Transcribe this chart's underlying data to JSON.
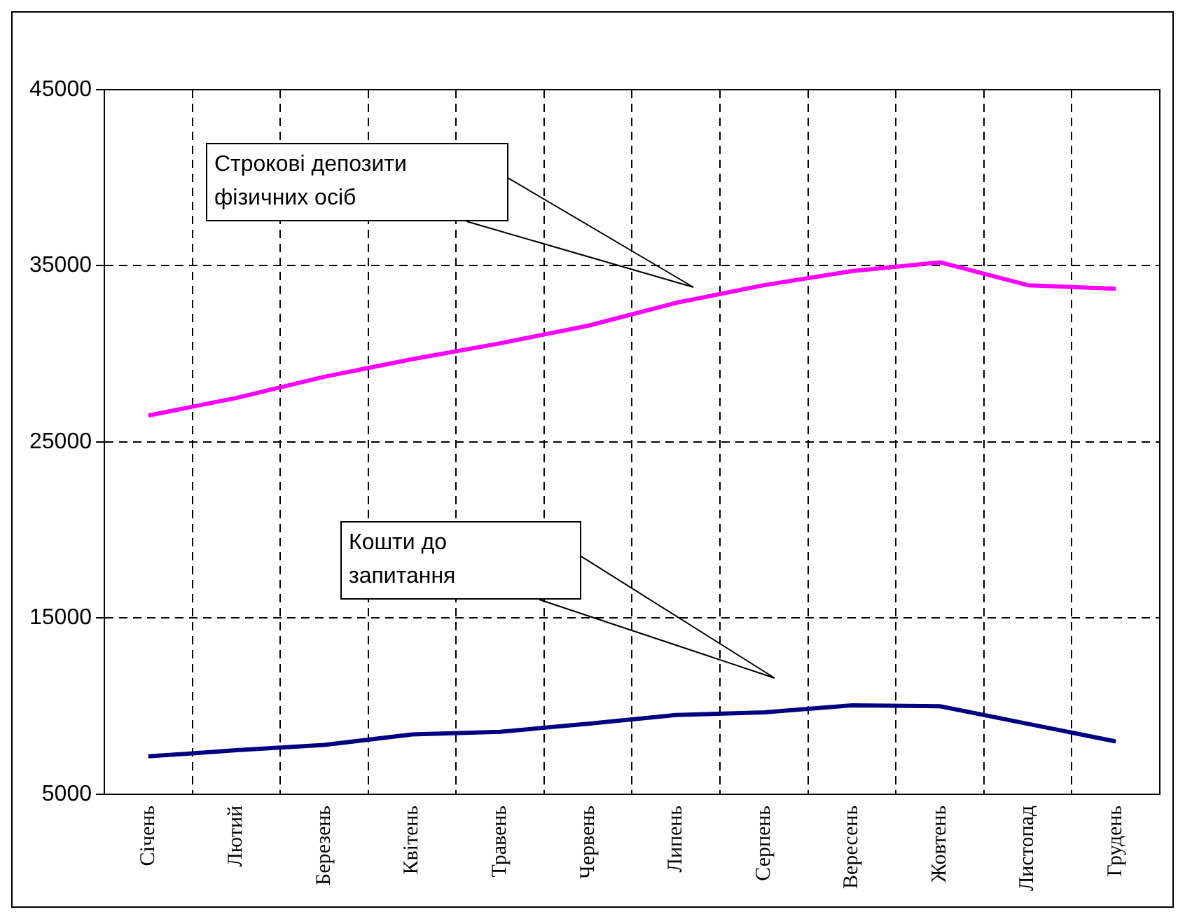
{
  "chart_data": {
    "type": "line",
    "categories": [
      "Січень",
      "Лютий",
      "Березень",
      "Квітень",
      "Травень",
      "Червень",
      "Липень",
      "Серпень",
      "Вересень",
      "Жовтень",
      "Листопад",
      "Грудень"
    ],
    "series": [
      {
        "color": "#ff00ff",
        "values": [
          26500,
          27500,
          28700,
          29700,
          30600,
          31600,
          32900,
          33900,
          34700,
          35200,
          33900,
          33700
        ]
      },
      {
        "color": "#000080",
        "values": [
          7150,
          7500,
          7800,
          8400,
          8550,
          9000,
          9500,
          9650,
          10050,
          10000,
          9000,
          8000
        ]
      }
    ],
    "ylim": [
      5000,
      45000
    ],
    "yticks": [
      5000,
      15000,
      25000,
      35000,
      45000
    ],
    "grid": true,
    "line_style": "solid",
    "marker": "none",
    "annotations": [
      "Строкові депозити фізичних осіб",
      "Кошти до запитання"
    ]
  }
}
